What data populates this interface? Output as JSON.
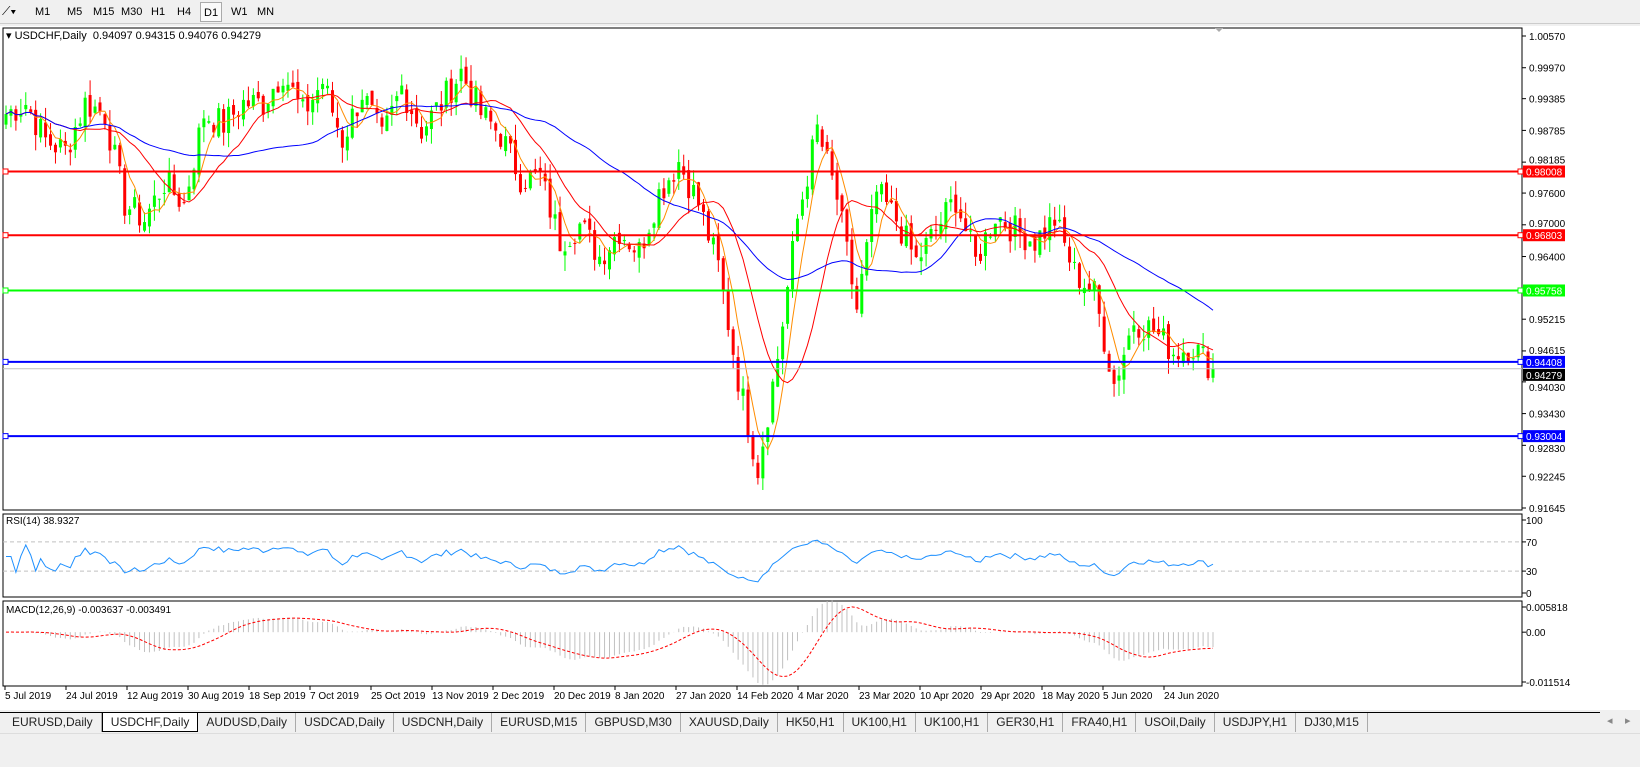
{
  "toolbar": {
    "timeframes": [
      "M1",
      "M5",
      "M15",
      "M30",
      "H1",
      "H4",
      "D1",
      "W1",
      "MN"
    ],
    "active": "D1"
  },
  "chart_data": {
    "type": "candlestick",
    "symbol_label": "USDCHF,Daily",
    "ohlc_label": "0.94097 0.94315 0.94076 0.94279",
    "last_price": "0.94279",
    "ylim": [
      0.91645,
      1.0057
    ],
    "y_ticks": [
      "1.00570",
      "0.99970",
      "0.99385",
      "0.98785",
      "0.98185",
      "0.97600",
      "0.97000",
      "0.96400",
      "0.95215",
      "0.94615",
      "0.94030",
      "0.93430",
      "0.92830",
      "0.92245",
      "0.91645"
    ],
    "x_ticks": [
      "5 Jul 2019",
      "24 Jul 2019",
      "12 Aug 2019",
      "30 Aug 2019",
      "18 Sep 2019",
      "7 Oct 2019",
      "25 Oct 2019",
      "13 Nov 2019",
      "2 Dec 2019",
      "20 Dec 2019",
      "8 Jan 2020",
      "27 Jan 2020",
      "14 Feb 2020",
      "4 Mar 2020",
      "23 Mar 2020",
      "10 Apr 2020",
      "29 Apr 2020",
      "18 May 2020",
      "5 Jun 2020",
      "24 Jun 2020"
    ],
    "close_series": [
      0.991,
      0.993,
      0.986,
      0.984,
      0.993,
      0.991,
      0.974,
      0.971,
      0.978,
      0.974,
      0.991,
      0.989,
      0.993,
      0.993,
      0.999,
      0.991,
      0.997,
      0.986,
      0.995,
      0.986,
      0.996,
      0.988,
      0.993,
      0.999,
      0.991,
      0.987,
      0.979,
      0.979,
      0.967,
      0.97,
      0.964,
      0.969,
      0.965,
      0.976,
      0.982,
      0.974,
      0.962,
      0.941,
      0.924,
      0.945,
      0.971,
      0.988,
      0.975,
      0.954,
      0.976,
      0.971,
      0.963,
      0.969,
      0.975,
      0.963,
      0.972,
      0.969,
      0.967,
      0.971,
      0.961,
      0.957,
      0.94,
      0.952,
      0.95,
      0.946,
      0.947,
      0.9428
    ],
    "horizontal_lines": [
      {
        "price": 0.98008,
        "label": "0.98008",
        "color": "#ff0000"
      },
      {
        "price": 0.96803,
        "label": "0.96803",
        "color": "#ff0000"
      },
      {
        "price": 0.95758,
        "label": "0.95758",
        "color": "#00ff00"
      },
      {
        "price": 0.94408,
        "label": "0.94408",
        "color": "#0000ff"
      },
      {
        "price": 0.93004,
        "label": "0.93004",
        "color": "#0000ff"
      }
    ],
    "colors": {
      "bull": "#00ff00",
      "bear": "#ff0000",
      "ma_fast": "#ff8c00",
      "ma_mid": "#ff0000",
      "ma_slow": "#0000ff"
    },
    "rsi": {
      "label": "RSI(14) 38.9327",
      "ticks": [
        "100",
        "70",
        "30",
        "0"
      ],
      "levels": [
        70,
        30
      ],
      "color": "#1e90ff"
    },
    "macd": {
      "label": "MACD(12,26,9) -0.003637 -0.003491",
      "ticks": [
        "0.005818",
        "0.00",
        "-0.011514"
      ],
      "ylim": [
        -0.011514,
        0.005818
      ],
      "signal_color": "#ff0000",
      "hist_color": "#c0c0c0"
    }
  },
  "tabs": {
    "items": [
      "EURUSD,Daily",
      "USDCHF,Daily",
      "AUDUSD,Daily",
      "USDCAD,Daily",
      "USDCNH,Daily",
      "EURUSD,M15",
      "GBPUSD,M30",
      "XAUUSD,Daily",
      "HK50,H1",
      "UK100,H1",
      "UK100,H1",
      "GER30,H1",
      "FRA40,H1",
      "USOil,Daily",
      "USDJPY,H1",
      "DJ30,M15"
    ],
    "active": 1
  }
}
